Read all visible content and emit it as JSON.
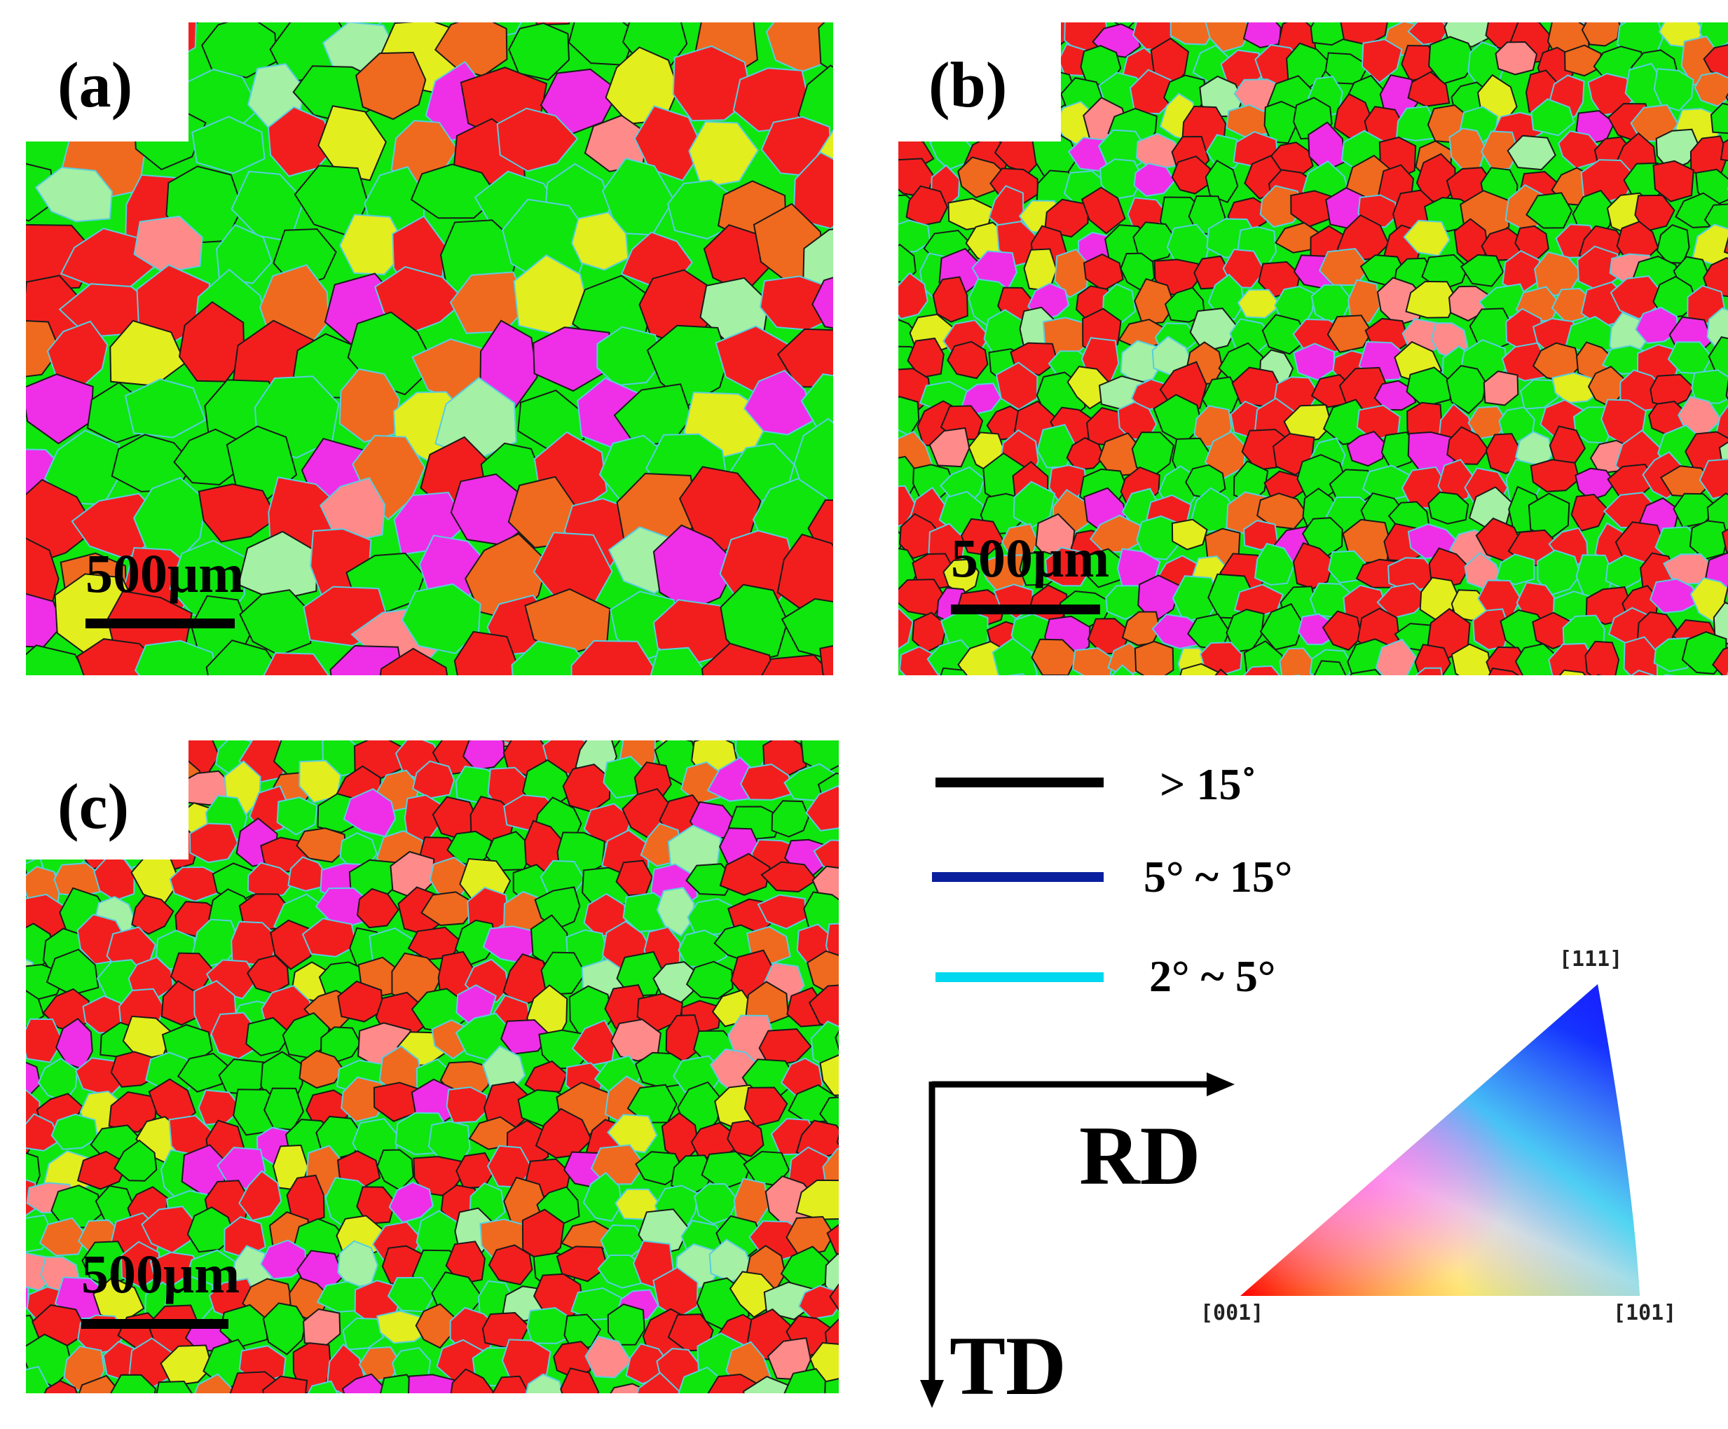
{
  "figure": {
    "panels": [
      {
        "id": "a",
        "label": "(a)",
        "scale_text": "500μm",
        "grain_density": "coarse"
      },
      {
        "id": "b",
        "label": "(b)",
        "scale_text": "500μm",
        "grain_density": "fine"
      },
      {
        "id": "c",
        "label": "(c)",
        "scale_text": "500μm",
        "grain_density": "fine"
      }
    ],
    "legend": [
      {
        "label": "> 15˚",
        "color": "#000000"
      },
      {
        "label": "5° ~ 15°",
        "color": "#0a1f9e"
      },
      {
        "label": "2° ~ 5°",
        "color": "#00d8f0"
      }
    ],
    "axes": {
      "rd": "RD",
      "td": "TD"
    },
    "ipf": {
      "corner_001": "[001]",
      "corner_101": "[101]",
      "corner_111": "[111]"
    },
    "colors": {
      "red": "#f21e1e",
      "green": "#0ee60e",
      "orange": "#ef6a1e",
      "magenta": "#ef2ee8",
      "yellow": "#e3ee1e",
      "cyan_boundary": "#58cde0"
    }
  }
}
